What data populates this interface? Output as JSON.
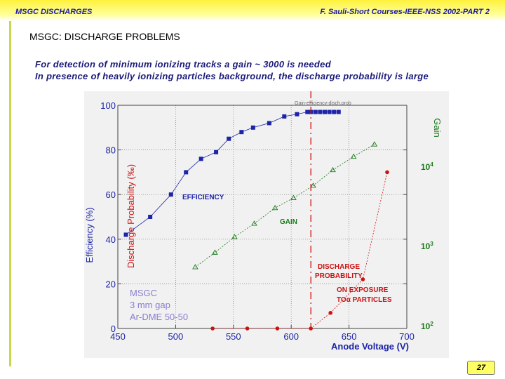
{
  "header": {
    "left": "MSGC DISCHARGES",
    "right": "F. Sauli-Short Courses-IEEE-NSS 2002-PART 2"
  },
  "slide": {
    "title": "MSGC: DISCHARGE PROBLEMS",
    "lines": [
      "For detection of minimum ionizing tracks a gain ~ 3000 is needed",
      "In presence of heavily ionizing particles background, the discharge probability is large"
    ],
    "page_number": "27"
  },
  "colors": {
    "efficiency": "#1c24a8",
    "gain": "#1a7a1a",
    "discharge": "#cc1111",
    "threshold": "#cc1111"
  },
  "chart_data": {
    "type": "line",
    "file_label": "Gain-efficiency-disch.prob",
    "xlabel": "Anode Voltage (V)",
    "xlim": [
      450,
      700
    ],
    "xticks": [
      450,
      500,
      550,
      600,
      650,
      700
    ],
    "ylim": [
      0,
      100
    ],
    "yticks": [
      0,
      20,
      40,
      60,
      80,
      100
    ],
    "ylabel_left_outer": "Efficiency (%)",
    "ylabel_left_inner": "Discharge Probability (‰)",
    "ylabel_right": "Gain",
    "right_ticks": [
      {
        "base": "10",
        "exp": "2",
        "value": 0
      },
      {
        "base": "10",
        "exp": "3",
        "value": 40
      },
      {
        "base": "10",
        "exp": "4",
        "value": 80
      }
    ],
    "grid": true,
    "series": [
      {
        "name": "EFFICIENCY",
        "marker": "square",
        "x": [
          457,
          478,
          496,
          509,
          522,
          535,
          546,
          557,
          567,
          581,
          594,
          605,
          614,
          617,
          621,
          625,
          629,
          633,
          637,
          641
        ],
        "y": [
          42,
          50,
          60,
          70,
          76,
          79,
          85,
          88,
          90,
          92,
          95,
          96,
          97,
          97,
          97,
          97,
          97,
          97,
          97,
          97
        ]
      },
      {
        "name": "GAIN",
        "marker": "triangle",
        "x": [
          517,
          534,
          551,
          568,
          586,
          602,
          619,
          636,
          654,
          672
        ],
        "y": [
          27.5,
          34,
          41,
          47,
          54,
          58.5,
          64,
          71,
          77,
          82.5
        ]
      },
      {
        "name": "DISCHARGE PROBABILITY",
        "marker": "circle",
        "x": [
          532,
          562,
          588,
          617,
          634,
          662,
          683
        ],
        "y": [
          0,
          0,
          0,
          0,
          7,
          22,
          70
        ]
      }
    ],
    "threshold_x": 617,
    "annotations": {
      "discharge": [
        "DISCHARGE",
        "PROBABILITY"
      ],
      "exposure": [
        "ON EXPOSURE",
        "TOα PARTICLES"
      ],
      "detector": [
        "MSGC",
        "3 mm gap",
        "Ar-DME 50-50"
      ]
    }
  }
}
